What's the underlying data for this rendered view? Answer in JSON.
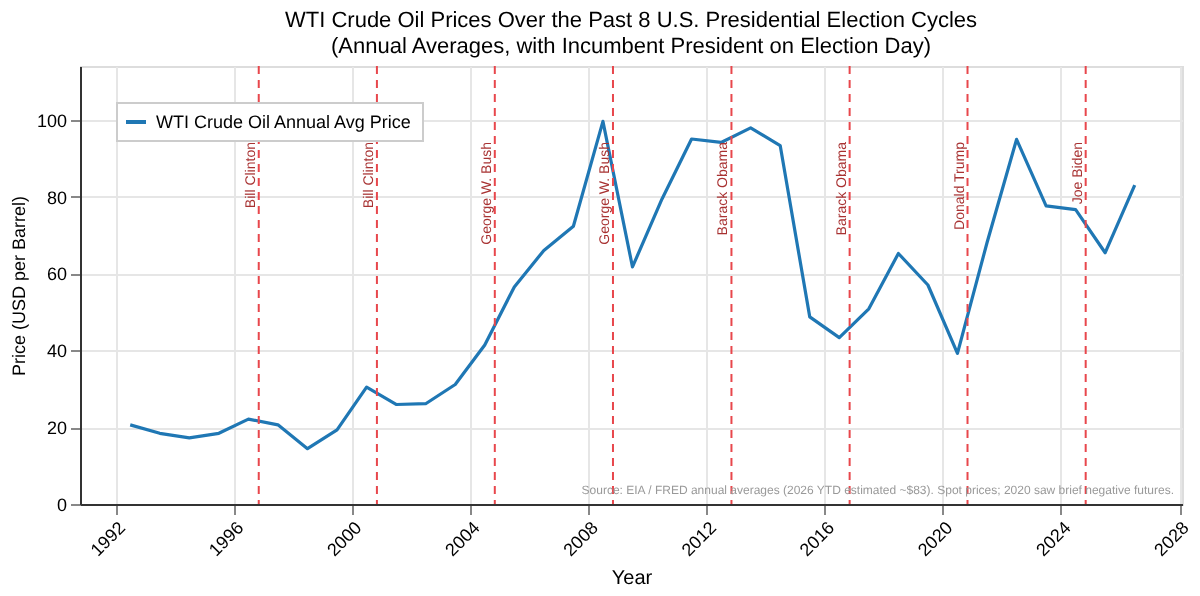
{
  "chart_data": {
    "type": "line",
    "title": "WTI Crude Oil Prices Over the Past 8 U.S. Presidential Election Cycles\n(Annual Averages, with Incumbent President on Election Day)",
    "xlabel": "Year",
    "ylabel": "Price (USD per Barrel)",
    "x": [
      1992.5,
      1993.5,
      1994.5,
      1995.5,
      1996.5,
      1997.5,
      1998.5,
      1999.5,
      2000.5,
      2001.5,
      2002.5,
      2003.5,
      2004.5,
      2005.5,
      2006.5,
      2007.5,
      2008.5,
      2009.5,
      2010.5,
      2011.5,
      2012.5,
      2013.5,
      2014.5,
      2015.5,
      2016.5,
      2017.5,
      2018.5,
      2019.5,
      2020.5,
      2021.5,
      2022.5,
      2023.5,
      2024.5,
      2025.5,
      2026.5
    ],
    "series": [
      {
        "name": "WTI Crude Oil Annual Avg Price",
        "color": "#1f77b4",
        "values": [
          20.6,
          18.4,
          17.2,
          18.4,
          22.1,
          20.6,
          14.4,
          19.3,
          30.4,
          25.9,
          26.1,
          31.1,
          41.4,
          56.5,
          66.0,
          72.3,
          99.6,
          61.7,
          79.4,
          95.0,
          94.1,
          97.9,
          93.3,
          48.7,
          43.3,
          50.8,
          65.2,
          57.0,
          39.2,
          68.0,
          94.9,
          77.6,
          76.6,
          65.4,
          83.0
        ]
      }
    ],
    "xlim": [
      1990.8,
      2028.1
    ],
    "ylim": [
      0,
      114
    ],
    "xticks": [
      1992,
      1996,
      2000,
      2004,
      2008,
      2012,
      2016,
      2020,
      2024,
      2028
    ],
    "yticks": [
      0,
      20,
      40,
      60,
      80,
      100
    ],
    "ref_lines": [
      {
        "axis": "x",
        "value": 1996.85,
        "label": "Bill Clinton",
        "color": "#e8474c",
        "line_style": "dashed"
      },
      {
        "axis": "x",
        "value": 2000.85,
        "label": "Bill Clinton",
        "color": "#e8474c",
        "line_style": "dashed"
      },
      {
        "axis": "x",
        "value": 2004.84,
        "label": "George W. Bush",
        "color": "#e8474c",
        "line_style": "dashed"
      },
      {
        "axis": "x",
        "value": 2008.84,
        "label": "George W. Bush",
        "color": "#e8474c",
        "line_style": "dashed"
      },
      {
        "axis": "x",
        "value": 2012.85,
        "label": "Barack Obama",
        "color": "#e8474c",
        "line_style": "dashed"
      },
      {
        "axis": "x",
        "value": 2016.85,
        "label": "Barack Obama",
        "color": "#e8474c",
        "line_style": "dashed"
      },
      {
        "axis": "x",
        "value": 2020.84,
        "label": "Donald Trump",
        "color": "#e8474c",
        "line_style": "dashed"
      },
      {
        "axis": "x",
        "value": 2024.84,
        "label": "Joe Biden",
        "color": "#e8474c",
        "line_style": "dashed"
      }
    ],
    "annotations": [
      "Source: EIA / FRED annual averages (2026 YTD estimated ~$83). Spot prices; 2020 saw brief negative futures."
    ],
    "grid": true,
    "legend": "top left",
    "marker": "none",
    "line_style": "solid"
  }
}
